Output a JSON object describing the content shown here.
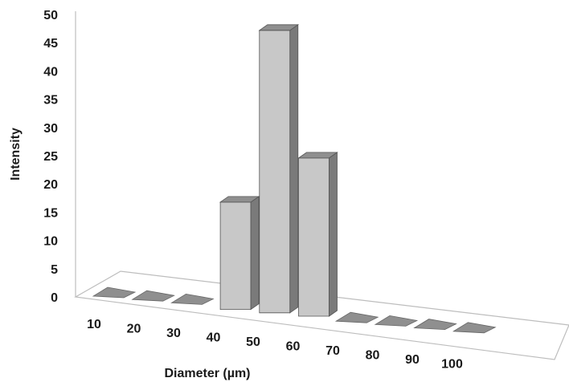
{
  "chart_data": {
    "type": "bar",
    "style": "3d-column",
    "categories": [
      "10",
      "20",
      "30",
      "40",
      "50",
      "60",
      "70",
      "80",
      "90",
      "100"
    ],
    "values": [
      0,
      0,
      0,
      19,
      50,
      28,
      0,
      0,
      0,
      0
    ],
    "title": "",
    "xlabel": "Diameter (µm)",
    "ylabel": "Intensity",
    "ylim": [
      0,
      50
    ],
    "yticks": [
      0,
      5,
      10,
      15,
      20,
      25,
      30,
      35,
      40,
      45,
      50
    ],
    "grid": false,
    "legend": "none",
    "colors": {
      "bar_front": "#c8c8c8",
      "bar_side": "#7a7a7a",
      "bar_top": "#8f8f8f",
      "floor": "#ffffff",
      "axis": "#bdbdbd"
    }
  }
}
